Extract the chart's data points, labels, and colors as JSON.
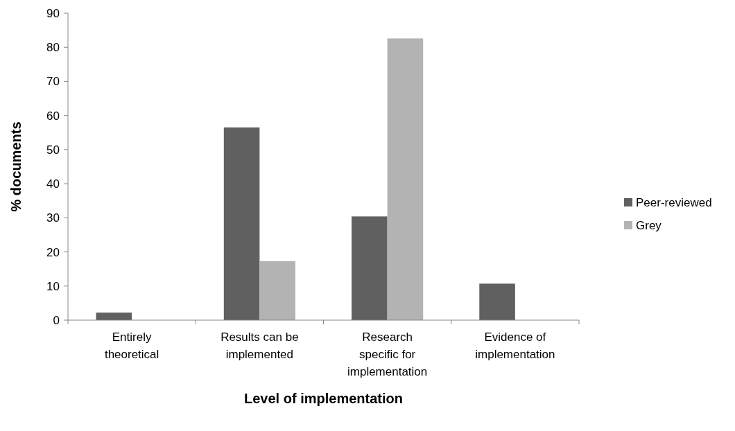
{
  "chart_data": {
    "type": "bar",
    "xlabel": "Level of implementation",
    "ylabel": "% documents",
    "categories": [
      "Entirely theoretical",
      "Results can be implemented",
      "Research specific for implementation",
      "Evidence of implementation"
    ],
    "series": [
      {
        "name": "Peer-reviewed",
        "color": "#606060",
        "values": [
          2.2,
          56.5,
          30.4,
          10.7
        ]
      },
      {
        "name": "Grey",
        "color": "#b3b3b3",
        "values": [
          0,
          17.3,
          82.6,
          0
        ]
      }
    ],
    "ylim": [
      0,
      90
    ],
    "yticks": [
      0,
      10,
      20,
      30,
      40,
      50,
      60,
      70,
      80,
      90
    ],
    "grid": false,
    "legend": "right"
  }
}
